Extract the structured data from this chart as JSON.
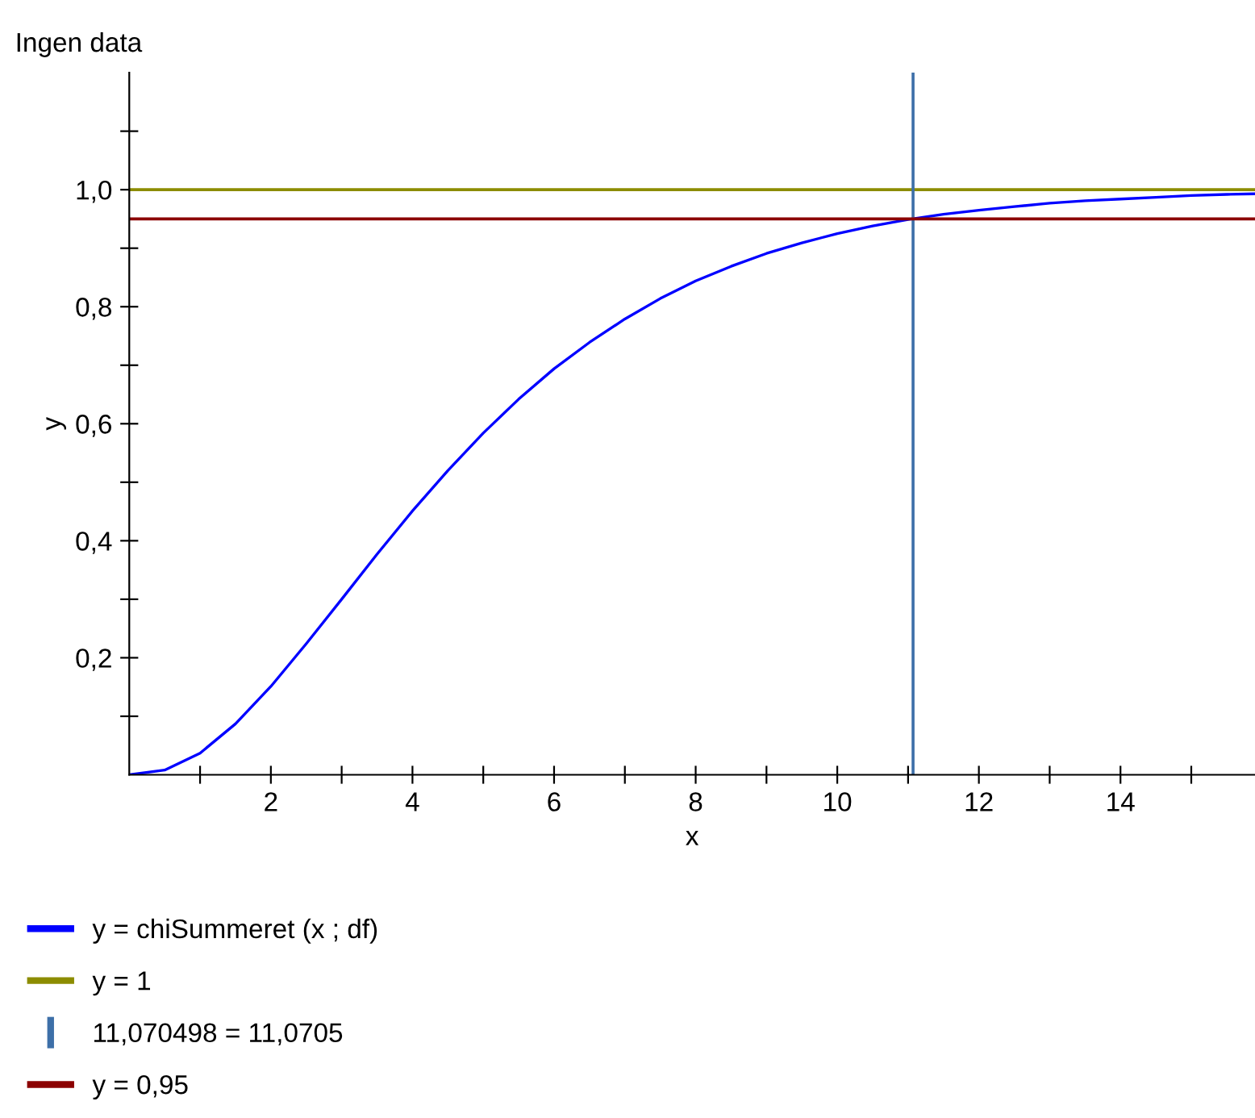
{
  "chart_data": {
    "type": "line",
    "xlabel": "x",
    "ylabel": "y",
    "annotations": [
      "Ingen data"
    ],
    "x": [
      0,
      0.5,
      1,
      1.5,
      2,
      2.5,
      3,
      3.5,
      4,
      4.5,
      5,
      5.5,
      6,
      6.5,
      7,
      7.5,
      8,
      8.5,
      9,
      9.5,
      10,
      10.5,
      11,
      11.5,
      12,
      12.5,
      13,
      13.5,
      14,
      14.5,
      15,
      15.5,
      15.9
    ],
    "series": [
      {
        "name": "y = chiSummeret (x ; df)",
        "color": "#0000ff",
        "values": [
          0,
          0.008,
          0.037,
          0.087,
          0.151,
          0.224,
          0.3,
          0.377,
          0.451,
          0.52,
          0.584,
          0.642,
          0.694,
          0.739,
          0.779,
          0.814,
          0.844,
          0.869,
          0.891,
          0.909,
          0.925,
          0.938,
          0.949,
          0.958,
          0.965,
          0.971,
          0.977,
          0.981,
          0.984,
          0.987,
          0.99,
          0.992,
          0.993
        ]
      }
    ],
    "ref_lines": [
      {
        "axis": "y",
        "value": 1,
        "label": "y = 1",
        "color": "#8c8c00"
      },
      {
        "axis": "x",
        "value": 11.070498,
        "label": "11,070498 = 11,0705",
        "color": "#3d6fa8"
      },
      {
        "axis": "y",
        "value": 0.95,
        "label": "y = 0,95",
        "color": "#8b0000"
      }
    ],
    "xlim": [
      0,
      15.9
    ],
    "ylim": [
      0,
      1.2
    ],
    "xticks": [
      {
        "value": 1,
        "label": null
      },
      {
        "value": 2,
        "label": "2"
      },
      {
        "value": 3,
        "label": null
      },
      {
        "value": 4,
        "label": "4"
      },
      {
        "value": 5,
        "label": null
      },
      {
        "value": 6,
        "label": "6"
      },
      {
        "value": 7,
        "label": null
      },
      {
        "value": 8,
        "label": "8"
      },
      {
        "value": 9,
        "label": null
      },
      {
        "value": 10,
        "label": "10"
      },
      {
        "value": 11,
        "label": null
      },
      {
        "value": 12,
        "label": "12"
      },
      {
        "value": 13,
        "label": null
      },
      {
        "value": 14,
        "label": "14"
      },
      {
        "value": 15,
        "label": null
      }
    ],
    "yticks": [
      {
        "value": 0.1,
        "label": null
      },
      {
        "value": 0.2,
        "label": "0,2"
      },
      {
        "value": 0.3,
        "label": null
      },
      {
        "value": 0.4,
        "label": "0,4"
      },
      {
        "value": 0.5,
        "label": null
      },
      {
        "value": 0.6,
        "label": "0,6"
      },
      {
        "value": 0.7,
        "label": null
      },
      {
        "value": 0.8,
        "label": "0,8"
      },
      {
        "value": 0.9,
        "label": null
      },
      {
        "value": 1.0,
        "label": "1,0"
      },
      {
        "value": 1.1,
        "label": null
      }
    ],
    "grid": false,
    "legend": "bottom",
    "marker": "none",
    "line_style": "solid"
  }
}
